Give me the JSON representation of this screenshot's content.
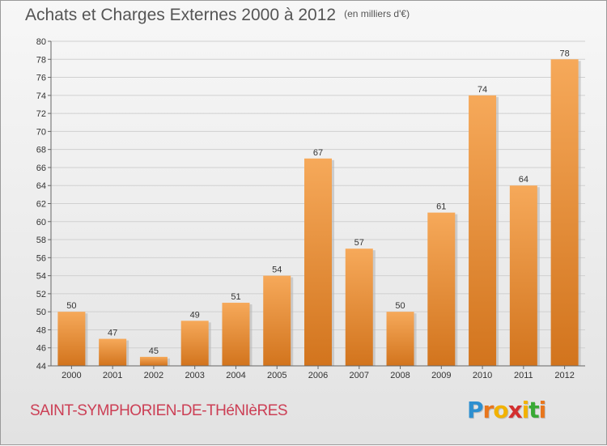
{
  "header": {
    "title": "Achats et Charges Externes 2000 à 2012",
    "unit": "(en milliers d'€)"
  },
  "footer": {
    "commune": "SAINT-SYMPHORIEN-DE-THéNIèRES",
    "logo_letters": [
      "P",
      "r",
      "o",
      "x",
      "i",
      "t",
      "i"
    ],
    "logo_colors": [
      "#2d8fd0",
      "#e8761c",
      "#f2b200",
      "#d32f2f",
      "#f2b200",
      "#39a935",
      "#e8761c"
    ]
  },
  "colors": {
    "bar_top": "#f6a95a",
    "bar_bottom": "#d2741d",
    "grid": "#d0d0d0",
    "axis": "#666666"
  },
  "chart_data": {
    "type": "bar",
    "title": "Achats et Charges Externes 2000 à 2012",
    "subtitle": "(en milliers d'€)",
    "categories": [
      "2000",
      "2001",
      "2002",
      "2003",
      "2004",
      "2005",
      "2006",
      "2007",
      "2008",
      "2009",
      "2010",
      "2011",
      "2012"
    ],
    "values": [
      50,
      47,
      45,
      49,
      51,
      54,
      67,
      57,
      50,
      61,
      74,
      64,
      78
    ],
    "ylim": [
      44,
      80
    ],
    "ytick_step": 2,
    "grid": true,
    "data_labels": true
  }
}
